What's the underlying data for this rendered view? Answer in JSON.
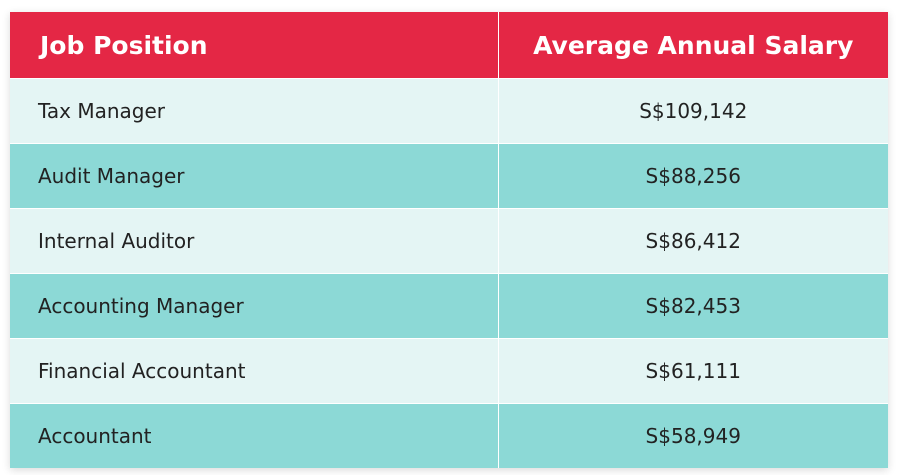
{
  "table": {
    "header": [
      "Job Position",
      "Average Annual Salary"
    ],
    "rows": [
      [
        "Tax Manager",
        "S$109,142"
      ],
      [
        "Audit Manager",
        "S$88,256"
      ],
      [
        "Internal Auditor",
        "S$86,412"
      ],
      [
        "Accounting Manager",
        "S$82,453"
      ],
      [
        "Financial Accountant",
        "S$61,111"
      ],
      [
        "Accountant",
        "S$58,949"
      ]
    ]
  }
}
